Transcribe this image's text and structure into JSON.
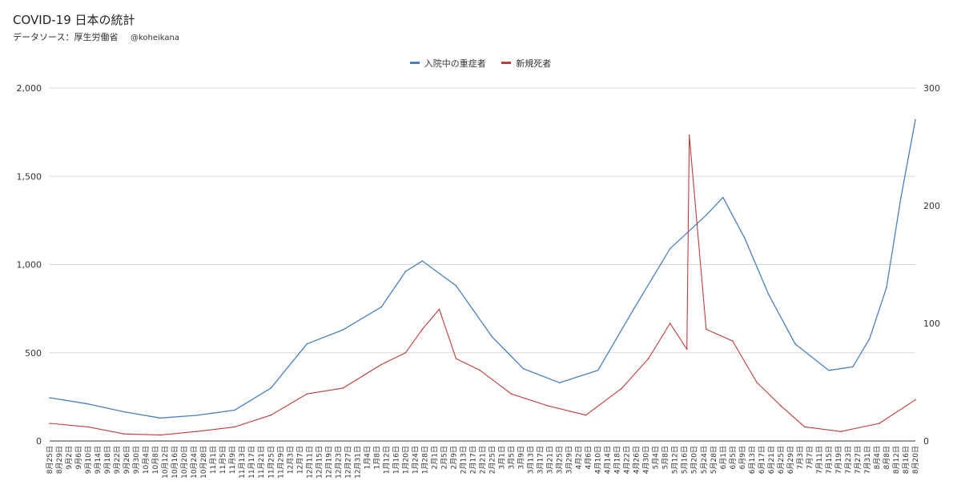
{
  "header": {
    "title": "COVID-19 日本の統計",
    "subtitle": "データソース：厚生労働省",
    "handle": "@koheikana"
  },
  "colors": {
    "severe": "#4a7fc1",
    "deaths": "#c23b3b",
    "grid": "#d9d9d9",
    "axis": "#333333"
  },
  "chart_data": {
    "type": "line",
    "legend_position": "top",
    "grid": true,
    "series": [
      {
        "name": "入院中の重症者",
        "axis": "left",
        "x": [
          "2020-08-25",
          "2020-09-10",
          "2020-09-25",
          "2020-10-10",
          "2020-10-25",
          "2020-11-10",
          "2020-11-25",
          "2020-12-10",
          "2020-12-25",
          "2021-01-10",
          "2021-01-20",
          "2021-01-27",
          "2021-02-10",
          "2021-02-25",
          "2021-03-10",
          "2021-03-25",
          "2021-04-10",
          "2021-04-25",
          "2021-05-10",
          "2021-05-25",
          "2021-06-01",
          "2021-06-10",
          "2021-06-20",
          "2021-07-01",
          "2021-07-15",
          "2021-07-25",
          "2021-08-01",
          "2021-08-08",
          "2021-08-14",
          "2021-08-20"
        ],
        "values": [
          245,
          210,
          165,
          130,
          145,
          175,
          300,
          550,
          630,
          760,
          960,
          1020,
          880,
          590,
          410,
          330,
          400,
          750,
          1090,
          1280,
          1380,
          1150,
          830,
          550,
          400,
          420,
          580,
          870,
          1380,
          1820
        ]
      },
      {
        "name": "新規死者",
        "axis": "right",
        "x": [
          "2020-08-25",
          "2020-09-10",
          "2020-09-25",
          "2020-10-10",
          "2020-10-25",
          "2020-11-10",
          "2020-11-25",
          "2020-12-10",
          "2020-12-25",
          "2021-01-10",
          "2021-01-20",
          "2021-01-27",
          "2021-02-03",
          "2021-02-10",
          "2021-02-20",
          "2021-03-05",
          "2021-03-20",
          "2021-04-05",
          "2021-04-20",
          "2021-05-01",
          "2021-05-10",
          "2021-05-17",
          "2021-05-18",
          "2021-05-25",
          "2021-06-05",
          "2021-06-15",
          "2021-06-25",
          "2021-07-05",
          "2021-07-20",
          "2021-08-05",
          "2021-08-20"
        ],
        "values": [
          15,
          12,
          6,
          5,
          8,
          12,
          22,
          40,
          45,
          65,
          75,
          95,
          112,
          70,
          60,
          40,
          30,
          22,
          45,
          70,
          100,
          78,
          260,
          95,
          85,
          50,
          30,
          12,
          8,
          15,
          35
        ]
      }
    ],
    "left_axis": {
      "ylim": [
        0,
        2000
      ],
      "ticks": [
        0,
        500,
        1000,
        1500,
        2000
      ],
      "tick_labels": [
        "0",
        "500",
        "1,000",
        "1,500",
        "2,000"
      ]
    },
    "right_axis": {
      "ylim": [
        0,
        300
      ],
      "ticks": [
        0,
        100,
        200,
        300
      ],
      "tick_labels": [
        "0",
        "100",
        "200",
        "300"
      ]
    },
    "x_range": [
      "2020-08-25",
      "2021-08-20"
    ],
    "x_tick_labels": [
      "8月25日",
      "8月29日",
      "9月2日",
      "9月6日",
      "9月10日",
      "9月14日",
      "9月18日",
      "9月22日",
      "9月26日",
      "9月30日",
      "10月4日",
      "10月8日",
      "10月12日",
      "10月16日",
      "10月20日",
      "10月24日",
      "10月28日",
      "11月1日",
      "11月5日",
      "11月9日",
      "11月13日",
      "11月17日",
      "11月21日",
      "11月25日",
      "11月29日",
      "12月3日",
      "12月7日",
      "12月11日",
      "12月15日",
      "12月19日",
      "12月23日",
      "12月27日",
      "12月31日",
      "1月4日",
      "1月8日",
      "1月12日",
      "1月16日",
      "1月20日",
      "1月24日",
      "1月28日",
      "2月1日",
      "2月5日",
      "2月9日",
      "2月13日",
      "2月17日",
      "2月21日",
      "2月25日",
      "3月1日",
      "3月5日",
      "3月9日",
      "3月13日",
      "3月17日",
      "3月21日",
      "3月25日",
      "3月29日",
      "4月2日",
      "4月6日",
      "4月10日",
      "4月14日",
      "4月18日",
      "4月22日",
      "4月26日",
      "4月30日",
      "5月4日",
      "5月8日",
      "5月12日",
      "5月16日",
      "5月20日",
      "5月24日",
      "5月28日",
      "6月1日",
      "6月5日",
      "6月9日",
      "6月13日",
      "6月17日",
      "6月21日",
      "6月25日",
      "6月29日",
      "7月3日",
      "7月7日",
      "7月11日",
      "7月15日",
      "7月19日",
      "7月23日",
      "7月27日",
      "7月31日",
      "8月4日",
      "8月8日",
      "8月12日",
      "8月16日",
      "8月20日"
    ]
  }
}
